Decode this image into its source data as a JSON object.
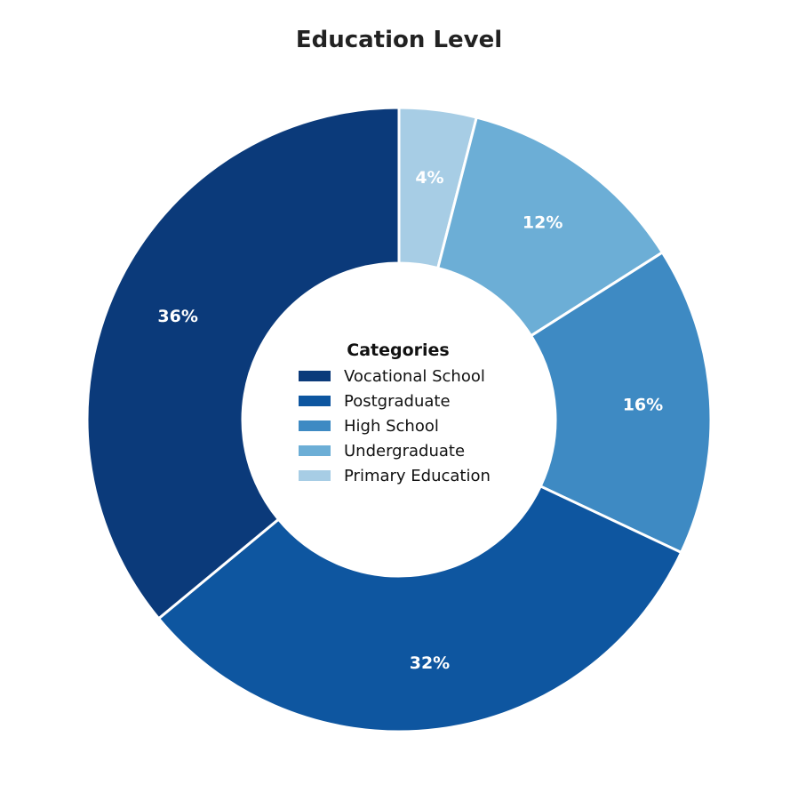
{
  "chart_data": {
    "type": "pie",
    "variant": "donut",
    "title": "Education Level",
    "legend_title": "Categories",
    "legend_placement": "center",
    "slices": [
      {
        "label": "Vocational School",
        "value": 36,
        "display": "36%",
        "color": "#0b3a7a"
      },
      {
        "label": "Postgraduate",
        "value": 32,
        "display": "32%",
        "color": "#0e56a0"
      },
      {
        "label": "High School",
        "value": 16,
        "display": "16%",
        "color": "#3e8ac3"
      },
      {
        "label": "Undergraduate",
        "value": 12,
        "display": "12%",
        "color": "#6caed6"
      },
      {
        "label": "Primary Education",
        "value": 4,
        "display": "4%",
        "color": "#a7cde5"
      }
    ],
    "start": "top",
    "direction": "clockwise-from-smallest"
  }
}
